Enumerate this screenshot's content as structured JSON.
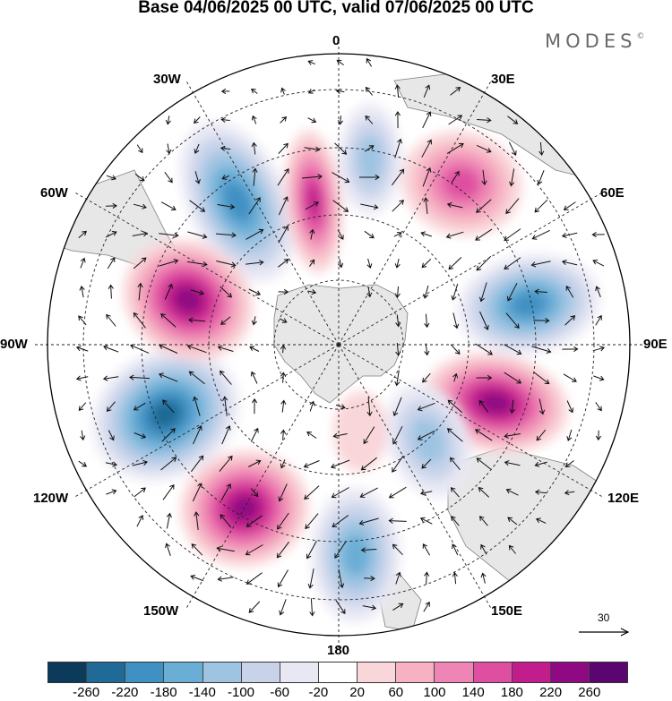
{
  "title": "Base 04/06/2025 00 UTC, valid 07/06/2025 00 UTC",
  "brand": "MODES",
  "brand_mark": "©",
  "longitude_labels": {
    "top": "0",
    "top_right": "30E",
    "right_upper": "60E",
    "right": "90E",
    "right_lower": "120E",
    "bottom_right": "150E",
    "bottom": "180",
    "bottom_left": "150W",
    "left_lower": "120W",
    "left": "90W",
    "left_upper": "60W",
    "top_left": "30W"
  },
  "reference_vector": {
    "value": "30"
  },
  "colorbar": {
    "colors": [
      "#0c3a5a",
      "#1f6a96",
      "#3f90c3",
      "#6aaed6",
      "#9ec4e2",
      "#c8d3ea",
      "#e8e8f4",
      "#ffffff",
      "#f9d6d9",
      "#f6b1c2",
      "#ee85b4",
      "#df4fa1",
      "#c21d8c",
      "#8f0a82",
      "#5a0570"
    ],
    "tick_labels": [
      "-260",
      "-220",
      "-180",
      "-140",
      "-100",
      "-60",
      "-20",
      "20",
      "60",
      "100",
      "140",
      "180",
      "220",
      "260"
    ]
  },
  "map": {
    "projection": "south-polar-stereographic",
    "anomaly_centers": [
      {
        "sign": "negative",
        "level": -220
      },
      {
        "sign": "positive",
        "level": 220
      },
      {
        "sign": "negative",
        "level": -140
      },
      {
        "sign": "positive",
        "level": 160
      },
      {
        "sign": "negative",
        "level": -220
      },
      {
        "sign": "positive",
        "level": 240
      },
      {
        "sign": "negative",
        "level": -140
      },
      {
        "sign": "positive",
        "level": 60
      },
      {
        "sign": "negative",
        "level": -180
      },
      {
        "sign": "positive",
        "level": 240
      },
      {
        "sign": "negative",
        "level": -240
      },
      {
        "sign": "positive",
        "level": 260
      }
    ]
  }
}
